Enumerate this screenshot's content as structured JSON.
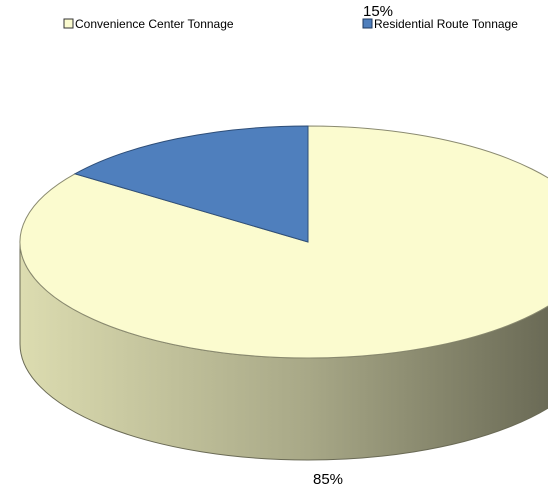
{
  "chart_data": {
    "type": "pie",
    "three_d": true,
    "legend_position": "top",
    "series": [
      {
        "name": "Convenience Center Tonnage",
        "value": 85,
        "label": "85%",
        "color": "#FBFBCF",
        "side_color": "#D6D6A6"
      },
      {
        "name": "Residential Route Tonnage",
        "value": 15,
        "label": "15%",
        "color": "#4F7FBD",
        "side_color": "#3A5F8E"
      }
    ]
  }
}
